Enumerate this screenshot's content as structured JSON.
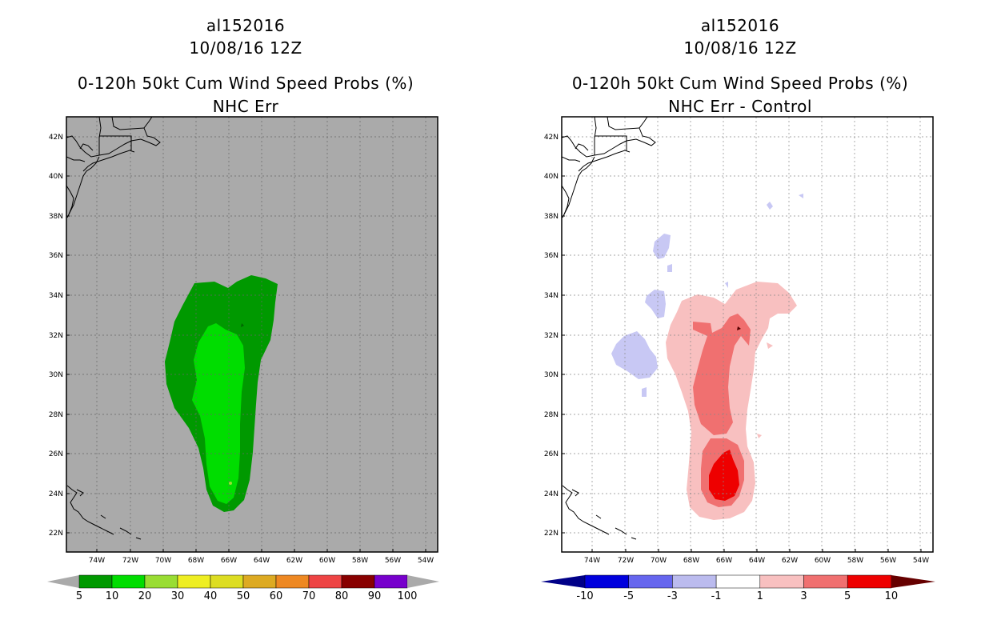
{
  "left_panel": {
    "storm": "al152016",
    "datetime": "10/08/16 12Z",
    "product": "0-120h 50kt Cum Wind Speed Probs (%)",
    "subtitle": "NHC Err",
    "colorbar": {
      "labels": [
        "5",
        "10",
        "20",
        "30",
        "40",
        "50",
        "60",
        "70",
        "80",
        "90",
        "100"
      ],
      "colors": [
        "#009900",
        "#00dd00",
        "#99dd33",
        "#eeee22",
        "#dddd22",
        "#ddaa22",
        "#ee8822",
        "#ee4444",
        "#880000",
        "#7700cc"
      ]
    }
  },
  "right_panel": {
    "storm": "al152016",
    "datetime": "10/08/16 12Z",
    "product": "0-120h 50kt Cum Wind Speed Probs (%)",
    "subtitle": "NHC Err - Control",
    "colorbar": {
      "labels": [
        "-10",
        "-5",
        "-3",
        "-1",
        "1",
        "3",
        "5",
        "10"
      ],
      "colors": [
        "#0000dd",
        "#6666ee",
        "#bbbbee",
        "#ffffff",
        "#f8c0c0",
        "#f07070",
        "#ee0000"
      ]
    }
  },
  "axes": {
    "lat_labels": [
      "42N",
      "40N",
      "38N",
      "36N",
      "34N",
      "32N",
      "30N",
      "28N",
      "26N",
      "24N",
      "22N"
    ],
    "lon_labels": [
      "74W",
      "72W",
      "70W",
      "68W",
      "66W",
      "64W",
      "62W",
      "60W",
      "58W",
      "56W",
      "54W"
    ]
  }
}
